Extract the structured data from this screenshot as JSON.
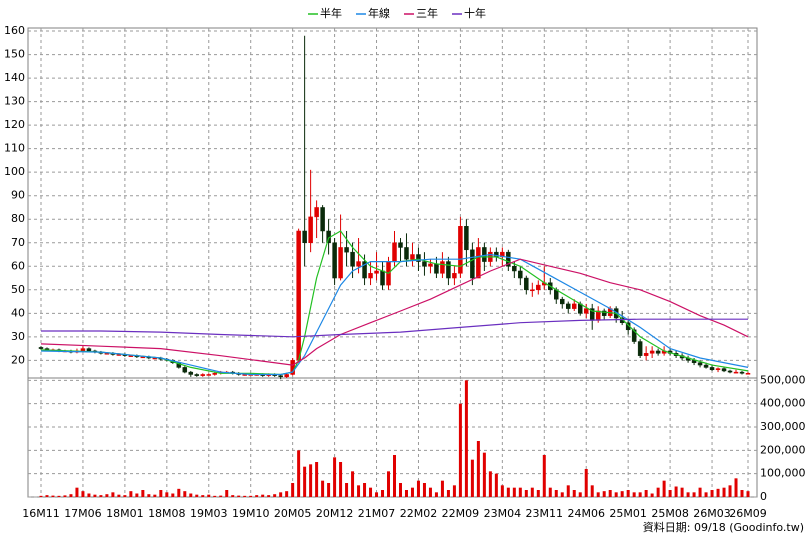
{
  "chart_data": {
    "type": "candlestick",
    "legend": "top",
    "grid": true,
    "footer": "資料日期: 09/18 (Goodinfo.tw)",
    "up_color": "#e00000",
    "down_color": "#0a2a0a",
    "categories": [
      "16M11",
      null,
      null,
      null,
      null,
      null,
      null,
      "17M06",
      null,
      null,
      null,
      null,
      null,
      null,
      "18M01",
      null,
      null,
      null,
      null,
      null,
      null,
      "18M08",
      null,
      null,
      null,
      null,
      null,
      null,
      "19M03",
      null,
      null,
      null,
      null,
      null,
      null,
      "19M10",
      null,
      null,
      null,
      null,
      null,
      null,
      "20M05",
      null,
      null,
      null,
      null,
      null,
      null,
      "20M12",
      null,
      null,
      null,
      null,
      null,
      null,
      "21M07",
      null,
      null,
      null,
      null,
      null,
      null,
      "22M02",
      null,
      null,
      null,
      null,
      null,
      null,
      "22M09",
      null,
      null,
      null,
      null,
      null,
      null,
      "23M04",
      null,
      null,
      null,
      null,
      null,
      null,
      "23M11",
      null,
      null,
      null,
      null,
      null,
      null,
      "24M06",
      null,
      null,
      null,
      null,
      null,
      null,
      "25M01",
      null,
      null,
      null,
      null,
      null,
      null,
      "25M08",
      null,
      null,
      null,
      null,
      null,
      null,
      "26M03",
      null,
      null,
      null,
      null,
      null,
      "26M09"
    ],
    "open": [
      25.5,
      25,
      24.5,
      24.5,
      24,
      24,
      23.5,
      24,
      25,
      24,
      23.5,
      23,
      23,
      22.5,
      22.5,
      22,
      22,
      21.5,
      21.5,
      21,
      21,
      20.5,
      20,
      19,
      17,
      15,
      14,
      13.5,
      14,
      14,
      14.5,
      15,
      15,
      14.5,
      14,
      14,
      14,
      14,
      13.5,
      14,
      13.5,
      13,
      14,
      20,
      75,
      70,
      81,
      85,
      75,
      70,
      55,
      68,
      66,
      60,
      62,
      55,
      57,
      58,
      52,
      62,
      70,
      68,
      63,
      65,
      62,
      60,
      61,
      57,
      62,
      55,
      57,
      77,
      67,
      55,
      68,
      62,
      66,
      64,
      66,
      60,
      58,
      55,
      50,
      50,
      52,
      53,
      50,
      46,
      44,
      42,
      44,
      40,
      42,
      37,
      41,
      39,
      42,
      38,
      36,
      33,
      28,
      22,
      23,
      24,
      23,
      24,
      23,
      22,
      21,
      20,
      19,
      18,
      17,
      16,
      16.5,
      15.5,
      15,
      15,
      14.5
    ],
    "high": [
      26,
      25.5,
      25,
      25,
      24.5,
      24.5,
      25,
      26,
      25.5,
      24.5,
      24,
      23.5,
      23.5,
      23,
      23,
      22.5,
      22.5,
      22,
      22,
      21.5,
      21.5,
      21,
      20.5,
      19.5,
      17.5,
      15.5,
      14.5,
      14.5,
      14.5,
      15,
      15.5,
      15.5,
      15.5,
      15,
      14.5,
      14.5,
      14.5,
      14.5,
      14.5,
      14.5,
      14,
      14.5,
      21,
      76,
      158,
      101,
      88,
      86,
      80,
      72,
      82,
      75,
      70,
      72,
      65,
      62,
      66,
      62,
      64,
      75,
      72,
      74,
      70,
      68,
      66,
      63,
      64,
      66,
      64,
      60,
      81,
      80,
      70,
      72,
      70,
      68,
      68,
      68,
      67,
      62,
      60,
      56,
      53,
      54,
      60,
      55,
      51,
      47,
      45,
      46,
      45,
      44,
      44,
      43,
      42,
      43,
      43,
      41,
      37,
      34,
      29,
      26,
      26,
      25,
      26,
      25,
      24,
      23,
      22,
      21,
      20,
      19,
      18,
      17,
      17,
      16,
      16,
      15.5,
      15
    ],
    "low": [
      24.5,
      24,
      24,
      23.5,
      23.5,
      23,
      23,
      23.5,
      23.5,
      23,
      22.5,
      22.5,
      22,
      22,
      21.5,
      21.5,
      21,
      21,
      20.5,
      20.5,
      20,
      19.5,
      18.5,
      16.5,
      14.5,
      13,
      13,
      13,
      13.5,
      13.5,
      14,
      14.5,
      14,
      13.5,
      13.5,
      13.5,
      13.5,
      13,
      13,
      13,
      12,
      12.5,
      13.5,
      19,
      60,
      66,
      72,
      70,
      65,
      52,
      54,
      60,
      55,
      57,
      52,
      52,
      54,
      50,
      50,
      60,
      62,
      60,
      60,
      58,
      56,
      57,
      55,
      55,
      52,
      52,
      55,
      60,
      52,
      55,
      58,
      60,
      62,
      60,
      58,
      55,
      52,
      48,
      47,
      48,
      50,
      48,
      44,
      42,
      40,
      41,
      39,
      38,
      33,
      36,
      37,
      38,
      36,
      35,
      31,
      27,
      21,
      20,
      21,
      22,
      22,
      22,
      21,
      20,
      19,
      18,
      17,
      16.5,
      15.5,
      15,
      15,
      14.5,
      14.5,
      14,
      14
    ],
    "close": [
      25,
      24.5,
      24.5,
      24,
      24,
      23.5,
      24,
      25,
      24,
      23.5,
      23,
      23,
      22.5,
      22.5,
      22,
      22,
      21.5,
      21.5,
      21,
      21,
      20.5,
      20,
      19,
      17,
      15,
      14,
      13.5,
      14,
      14,
      14.5,
      15,
      15,
      14.5,
      14,
      14,
      14,
      14,
      13.5,
      14,
      13.5,
      13,
      14,
      20,
      75,
      70,
      81,
      85,
      75,
      70,
      55,
      68,
      66,
      60,
      62,
      55,
      57,
      58,
      52,
      62,
      70,
      68,
      63,
      65,
      62,
      60,
      61,
      57,
      62,
      55,
      57,
      77,
      67,
      55,
      68,
      62,
      66,
      64,
      66,
      60,
      58,
      55,
      50,
      50,
      52,
      53,
      50,
      46,
      44,
      42,
      44,
      40,
      42,
      37,
      41,
      39,
      42,
      38,
      36,
      33,
      28,
      22,
      23,
      24,
      23,
      24,
      23,
      22,
      21,
      20,
      19,
      18,
      17,
      16,
      16.5,
      15.5,
      15,
      15,
      14.5,
      14.5
    ],
    "ylim": [
      12.5,
      161.3
    ],
    "yticks": [
      20,
      30,
      40,
      50,
      60,
      70,
      80,
      90,
      100,
      110,
      120,
      130,
      140,
      150,
      160
    ],
    "series": [
      {
        "name": "半年",
        "color": "#22c022",
        "x": [
          0,
          10,
          20,
          25,
          30,
          35,
          40,
          42,
          43,
          44,
          46,
          48,
          50,
          52,
          55,
          58,
          60,
          63,
          66,
          70,
          73,
          76,
          80,
          84,
          88,
          92,
          96,
          100,
          104,
          108,
          112,
          118
        ],
        "values": [
          24.5,
          23.5,
          21,
          17,
          14.5,
          14.5,
          14,
          15,
          20,
          30,
          55,
          72,
          75,
          68,
          60,
          57,
          62,
          63,
          61,
          60,
          64,
          64,
          60,
          53,
          47,
          41,
          40,
          30,
          24,
          21,
          18,
          15.5
        ]
      },
      {
        "name": "年線",
        "color": "#1e88e5",
        "x": [
          0,
          10,
          20,
          25,
          30,
          35,
          40,
          42,
          44,
          46,
          48,
          50,
          52,
          55,
          60,
          65,
          70,
          75,
          80,
          85,
          90,
          95,
          100,
          105,
          110,
          118
        ],
        "values": [
          24,
          23.5,
          21,
          18,
          15,
          14,
          14,
          15,
          22,
          32,
          42,
          52,
          58,
          62,
          62,
          63,
          63,
          65,
          63,
          56,
          49,
          42,
          34,
          25,
          21,
          17
        ]
      },
      {
        "name": "三年",
        "color": "#cc1166",
        "x": [
          0,
          10,
          20,
          30,
          36,
          42,
          44,
          46,
          50,
          55,
          60,
          65,
          70,
          75,
          80,
          85,
          90,
          95,
          100,
          105,
          110,
          114,
          118
        ],
        "values": [
          27,
          26,
          25,
          22,
          20,
          18,
          21,
          25,
          31,
          36,
          41,
          46,
          52,
          58,
          63,
          60,
          57,
          53,
          50,
          45,
          39,
          35,
          30
        ]
      },
      {
        "name": "十年",
        "color": "#6a2fc0",
        "x": [
          0,
          10,
          20,
          30,
          42,
          50,
          60,
          70,
          80,
          90,
          100,
          110,
          118
        ],
        "values": [
          32.5,
          32.5,
          32,
          31,
          30,
          31,
          32,
          34,
          36,
          37,
          37.5,
          37.5,
          37.5
        ]
      }
    ],
    "volume": {
      "color": "#e00000",
      "ylim": [
        0,
        510000
      ],
      "yticks": [
        {
          "value": 500000,
          "label": "500,000"
        },
        {
          "value": 400000,
          "label": "400,000"
        },
        {
          "value": 300000,
          "label": "300,000"
        },
        {
          "value": 200000,
          "label": "200,000"
        },
        {
          "value": 100000,
          "label": "100,000"
        },
        0
      ],
      "values": [
        5000,
        8000,
        6000,
        5000,
        7000,
        12000,
        40000,
        25000,
        15000,
        10000,
        8000,
        12000,
        20000,
        10000,
        8000,
        25000,
        15000,
        30000,
        12000,
        10000,
        30000,
        20000,
        15000,
        35000,
        25000,
        15000,
        10000,
        8000,
        10000,
        5000,
        6000,
        30000,
        8000,
        6000,
        5000,
        5000,
        8000,
        10000,
        8000,
        12000,
        20000,
        25000,
        60000,
        200000,
        130000,
        140000,
        150000,
        70000,
        60000,
        170000,
        150000,
        60000,
        110000,
        50000,
        60000,
        40000,
        20000,
        30000,
        110000,
        180000,
        60000,
        30000,
        40000,
        70000,
        60000,
        40000,
        20000,
        70000,
        30000,
        50000,
        400000,
        500000,
        160000,
        240000,
        190000,
        110000,
        100000,
        50000,
        40000,
        40000,
        40000,
        30000,
        40000,
        30000,
        180000,
        40000,
        30000,
        20000,
        50000,
        30000,
        20000,
        120000,
        50000,
        20000,
        25000,
        30000,
        20000,
        25000,
        30000,
        20000,
        20000,
        30000,
        15000,
        40000,
        70000,
        30000,
        45000,
        40000,
        20000,
        20000,
        40000,
        20000,
        30000,
        35000,
        40000,
        50000,
        80000,
        30000,
        25000
      ]
    }
  }
}
